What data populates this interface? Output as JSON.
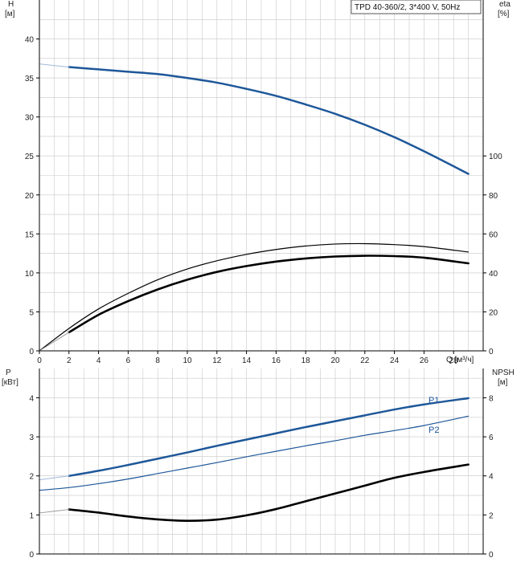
{
  "title": "TPD 40-360/2, 3*400 V, 50Hz",
  "colors": {
    "blue": "#1e5799",
    "black": "#000000",
    "grid": "#c8c8c8",
    "axis": "#000000"
  },
  "chart_data": [
    {
      "type": "line",
      "x_label": "Q [м³/ч]",
      "y_left_label": "H",
      "y_left_unit": "[м]",
      "y_right_label": "eta",
      "y_right_unit": "[%]",
      "xlim": [
        0,
        30
      ],
      "ylim_left": [
        0,
        45
      ],
      "ylim_right": [
        0,
        180
      ],
      "x_ticks": [
        0,
        2,
        4,
        6,
        8,
        10,
        12,
        14,
        16,
        18,
        20,
        22,
        24,
        26,
        28
      ],
      "y_left_ticks": [
        0,
        5,
        10,
        15,
        20,
        25,
        30,
        35,
        40
      ],
      "y_right_ticks": [
        0,
        20,
        40,
        60,
        80,
        100
      ],
      "grid": true,
      "series": [
        {
          "axis": "left",
          "color": "#1e5799",
          "width": 2.5,
          "x": [
            2,
            4,
            6,
            8,
            10,
            12,
            14,
            16,
            18,
            20,
            22,
            24,
            26,
            29
          ],
          "y": [
            36.4,
            36.1,
            35.8,
            35.5,
            35.0,
            34.4,
            33.6,
            32.7,
            31.6,
            30.4,
            29.0,
            27.4,
            25.6,
            22.7
          ]
        },
        {
          "axis": "left",
          "color": "#9fb8d8",
          "width": 1,
          "x": [
            0,
            2
          ],
          "y": [
            36.8,
            36.4
          ]
        },
        {
          "axis": "right",
          "color": "#000000",
          "width": 1.2,
          "x": [
            0,
            2,
            4,
            6,
            8,
            10,
            12,
            14,
            16,
            18,
            20,
            22,
            24,
            26,
            29
          ],
          "y": [
            0,
            11.5,
            21.5,
            29.5,
            36.5,
            42,
            46.2,
            49.5,
            52,
            53.8,
            54.8,
            55,
            54.5,
            53.5,
            50.7
          ]
        },
        {
          "axis": "right",
          "color": "#000000",
          "width": 2.6,
          "x": [
            2,
            4,
            6,
            8,
            10,
            12,
            14,
            16,
            18,
            20,
            22,
            24,
            26,
            29
          ],
          "y": [
            9.5,
            18.5,
            25.5,
            31.5,
            36.5,
            40.5,
            43.5,
            45.8,
            47.4,
            48.4,
            48.8,
            48.6,
            47.8,
            44.9
          ]
        },
        {
          "axis": "right",
          "color": "#9a9a9a",
          "width": 1,
          "x": [
            0,
            2
          ],
          "y": [
            0,
            9.5
          ]
        }
      ]
    },
    {
      "type": "line",
      "y_left_label": "P",
      "y_left_unit": "[кВт]",
      "y_right_label": "NPSH",
      "y_right_unit": "[м]",
      "xlim": [
        0,
        30
      ],
      "ylim_left": [
        0,
        4.75
      ],
      "ylim_right": [
        0,
        9.5
      ],
      "x_ticks": [
        0,
        2,
        4,
        6,
        8,
        10,
        12,
        14,
        16,
        18,
        20,
        22,
        24,
        26,
        28
      ],
      "y_left_ticks": [
        0,
        1,
        2,
        3,
        4
      ],
      "y_right_ticks": [
        0,
        2,
        4,
        6,
        8
      ],
      "grid": true,
      "series": [
        {
          "name": "P1",
          "axis": "left",
          "color": "#1e5799",
          "width": 2.5,
          "x": [
            2,
            4,
            6,
            8,
            10,
            12,
            14,
            16,
            18,
            20,
            22,
            24,
            26,
            29
          ],
          "y": [
            2.0,
            2.13,
            2.28,
            2.44,
            2.6,
            2.77,
            2.93,
            3.09,
            3.25,
            3.4,
            3.55,
            3.7,
            3.83,
            3.99
          ]
        },
        {
          "name": "P2",
          "axis": "left",
          "color": "#1e5799",
          "width": 1.2,
          "x": [
            0,
            2,
            4,
            6,
            8,
            10,
            12,
            14,
            16,
            18,
            20,
            22,
            24,
            26,
            29
          ],
          "y": [
            1.63,
            1.7,
            1.8,
            1.92,
            2.06,
            2.2,
            2.34,
            2.49,
            2.63,
            2.77,
            2.9,
            3.04,
            3.16,
            3.29,
            3.53
          ]
        },
        {
          "axis": "left",
          "color": "#9fb8d8",
          "width": 1,
          "x": [
            0,
            2
          ],
          "y": [
            1.9,
            2.0
          ]
        },
        {
          "axis": "right",
          "color": "#000000",
          "width": 2.6,
          "x": [
            2,
            4,
            6,
            8,
            10,
            12,
            14,
            16,
            18,
            20,
            22,
            24,
            26,
            29
          ],
          "y": [
            2.28,
            2.12,
            1.92,
            1.77,
            1.7,
            1.76,
            1.98,
            2.3,
            2.7,
            3.1,
            3.5,
            3.9,
            4.2,
            4.58
          ]
        },
        {
          "axis": "right",
          "color": "#9a9a9a",
          "width": 1,
          "x": [
            0,
            2
          ],
          "y": [
            2.1,
            2.28
          ]
        }
      ]
    }
  ]
}
